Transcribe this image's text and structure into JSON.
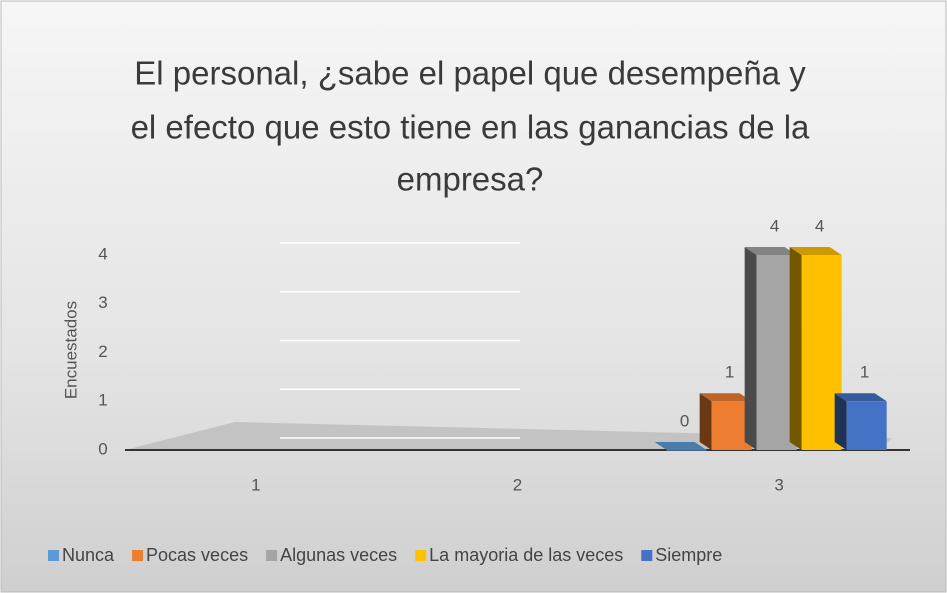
{
  "chart_data": {
    "type": "bar3d",
    "title_lines": [
      "El personal, ¿sabe el papel que desempeña y",
      "el efecto que esto tiene en las ganancias de la",
      "empresa?"
    ],
    "y_label": "Encuestados",
    "categories": [
      "1",
      "2",
      "3"
    ],
    "series": [
      {
        "name": "Nunca",
        "color": "#5b9bd5",
        "values": [
          null,
          null,
          0
        ]
      },
      {
        "name": "Pocas veces",
        "color": "#ed7d31",
        "values": [
          null,
          null,
          1
        ]
      },
      {
        "name": "Algunas veces",
        "color": "#a5a5a5",
        "values": [
          null,
          null,
          4
        ]
      },
      {
        "name": "La mayoria de las veces",
        "color": "#ffc000",
        "values": [
          null,
          null,
          4
        ]
      },
      {
        "name": "Siempre",
        "color": "#4472c4",
        "values": [
          null,
          null,
          1
        ]
      }
    ],
    "ylim": [
      0,
      4
    ],
    "yticks": [
      0,
      1,
      2,
      3,
      4
    ],
    "grid": true,
    "legend": "bottom"
  }
}
